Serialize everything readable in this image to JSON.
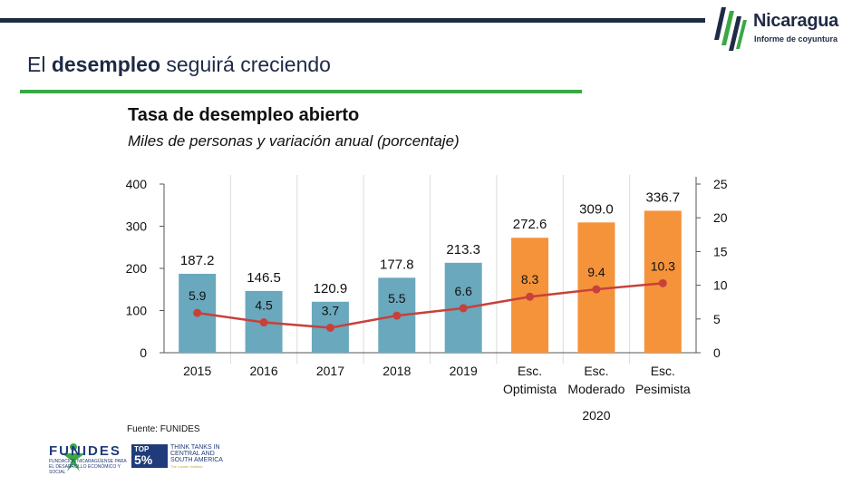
{
  "header": {
    "brand_name": "Nicaragua",
    "brand_tagline": "Informe de coyuntura"
  },
  "slide": {
    "title_before": "El ",
    "title_bold": "desempleo",
    "title_after": " seguirá creciendo"
  },
  "footer": {
    "source": "Fuente: FUNIDES",
    "funides_name": "FUNIDES",
    "funides_subtitle": "FUNDACIÓN NICARAGÜENSE PARA EL DESARROLLO ECONÓMICO Y SOCIAL",
    "think_tank_top": "TOP",
    "think_tank_pct": "5%",
    "think_tank_text": "THINK TANKS IN CENTRAL AND SOUTH AMERICA",
    "think_tank_sub": "The Lauder Institute"
  },
  "colors": {
    "bar_actual": "#6aa8bd",
    "bar_scenario": "#f4933a",
    "line": "#c8403a",
    "navy": "#1f2a44",
    "green": "#3aa843"
  },
  "chart_data": {
    "type": "bar",
    "title": "Tasa de desempleo abierto",
    "subtitle": "Miles de personas y variación anual (porcentaje)",
    "categories": [
      "2015",
      "2016",
      "2017",
      "2018",
      "2019",
      "Esc. Optimista",
      "Esc. Moderado",
      "Esc. Pesimista"
    ],
    "category_lines": [
      [
        "2015"
      ],
      [
        "2016"
      ],
      [
        "2017"
      ],
      [
        "2018"
      ],
      [
        "2019"
      ],
      [
        "Esc.",
        "Optimista"
      ],
      [
        "Esc.",
        "Moderado"
      ],
      [
        "Esc.",
        "Pesimista"
      ]
    ],
    "group_label": "2020",
    "series": [
      {
        "type": "bar",
        "axis": "left",
        "values": [
          187.2,
          146.5,
          120.9,
          177.8,
          213.3,
          272.6,
          309.0,
          336.7
        ],
        "labels": [
          "187.2",
          "146.5",
          "120.9",
          "177.8",
          "213.3",
          "272.6",
          "309.0",
          "336.7"
        ]
      },
      {
        "type": "line",
        "axis": "right",
        "values": [
          5.9,
          4.5,
          3.7,
          5.5,
          6.6,
          8.3,
          9.4,
          10.3
        ],
        "labels": [
          "5.9",
          "4.5",
          "3.7",
          "5.5",
          "6.6",
          "8.3",
          "9.4",
          "10.3"
        ]
      }
    ],
    "y_left": {
      "ylim": [
        0,
        400
      ],
      "ticks": [
        0,
        100,
        200,
        300,
        400
      ]
    },
    "y_right": {
      "ylim": [
        0,
        25
      ],
      "ticks": [
        0,
        5,
        10,
        15,
        20,
        25
      ]
    },
    "grid": "vertical category separators",
    "legend": "none"
  }
}
